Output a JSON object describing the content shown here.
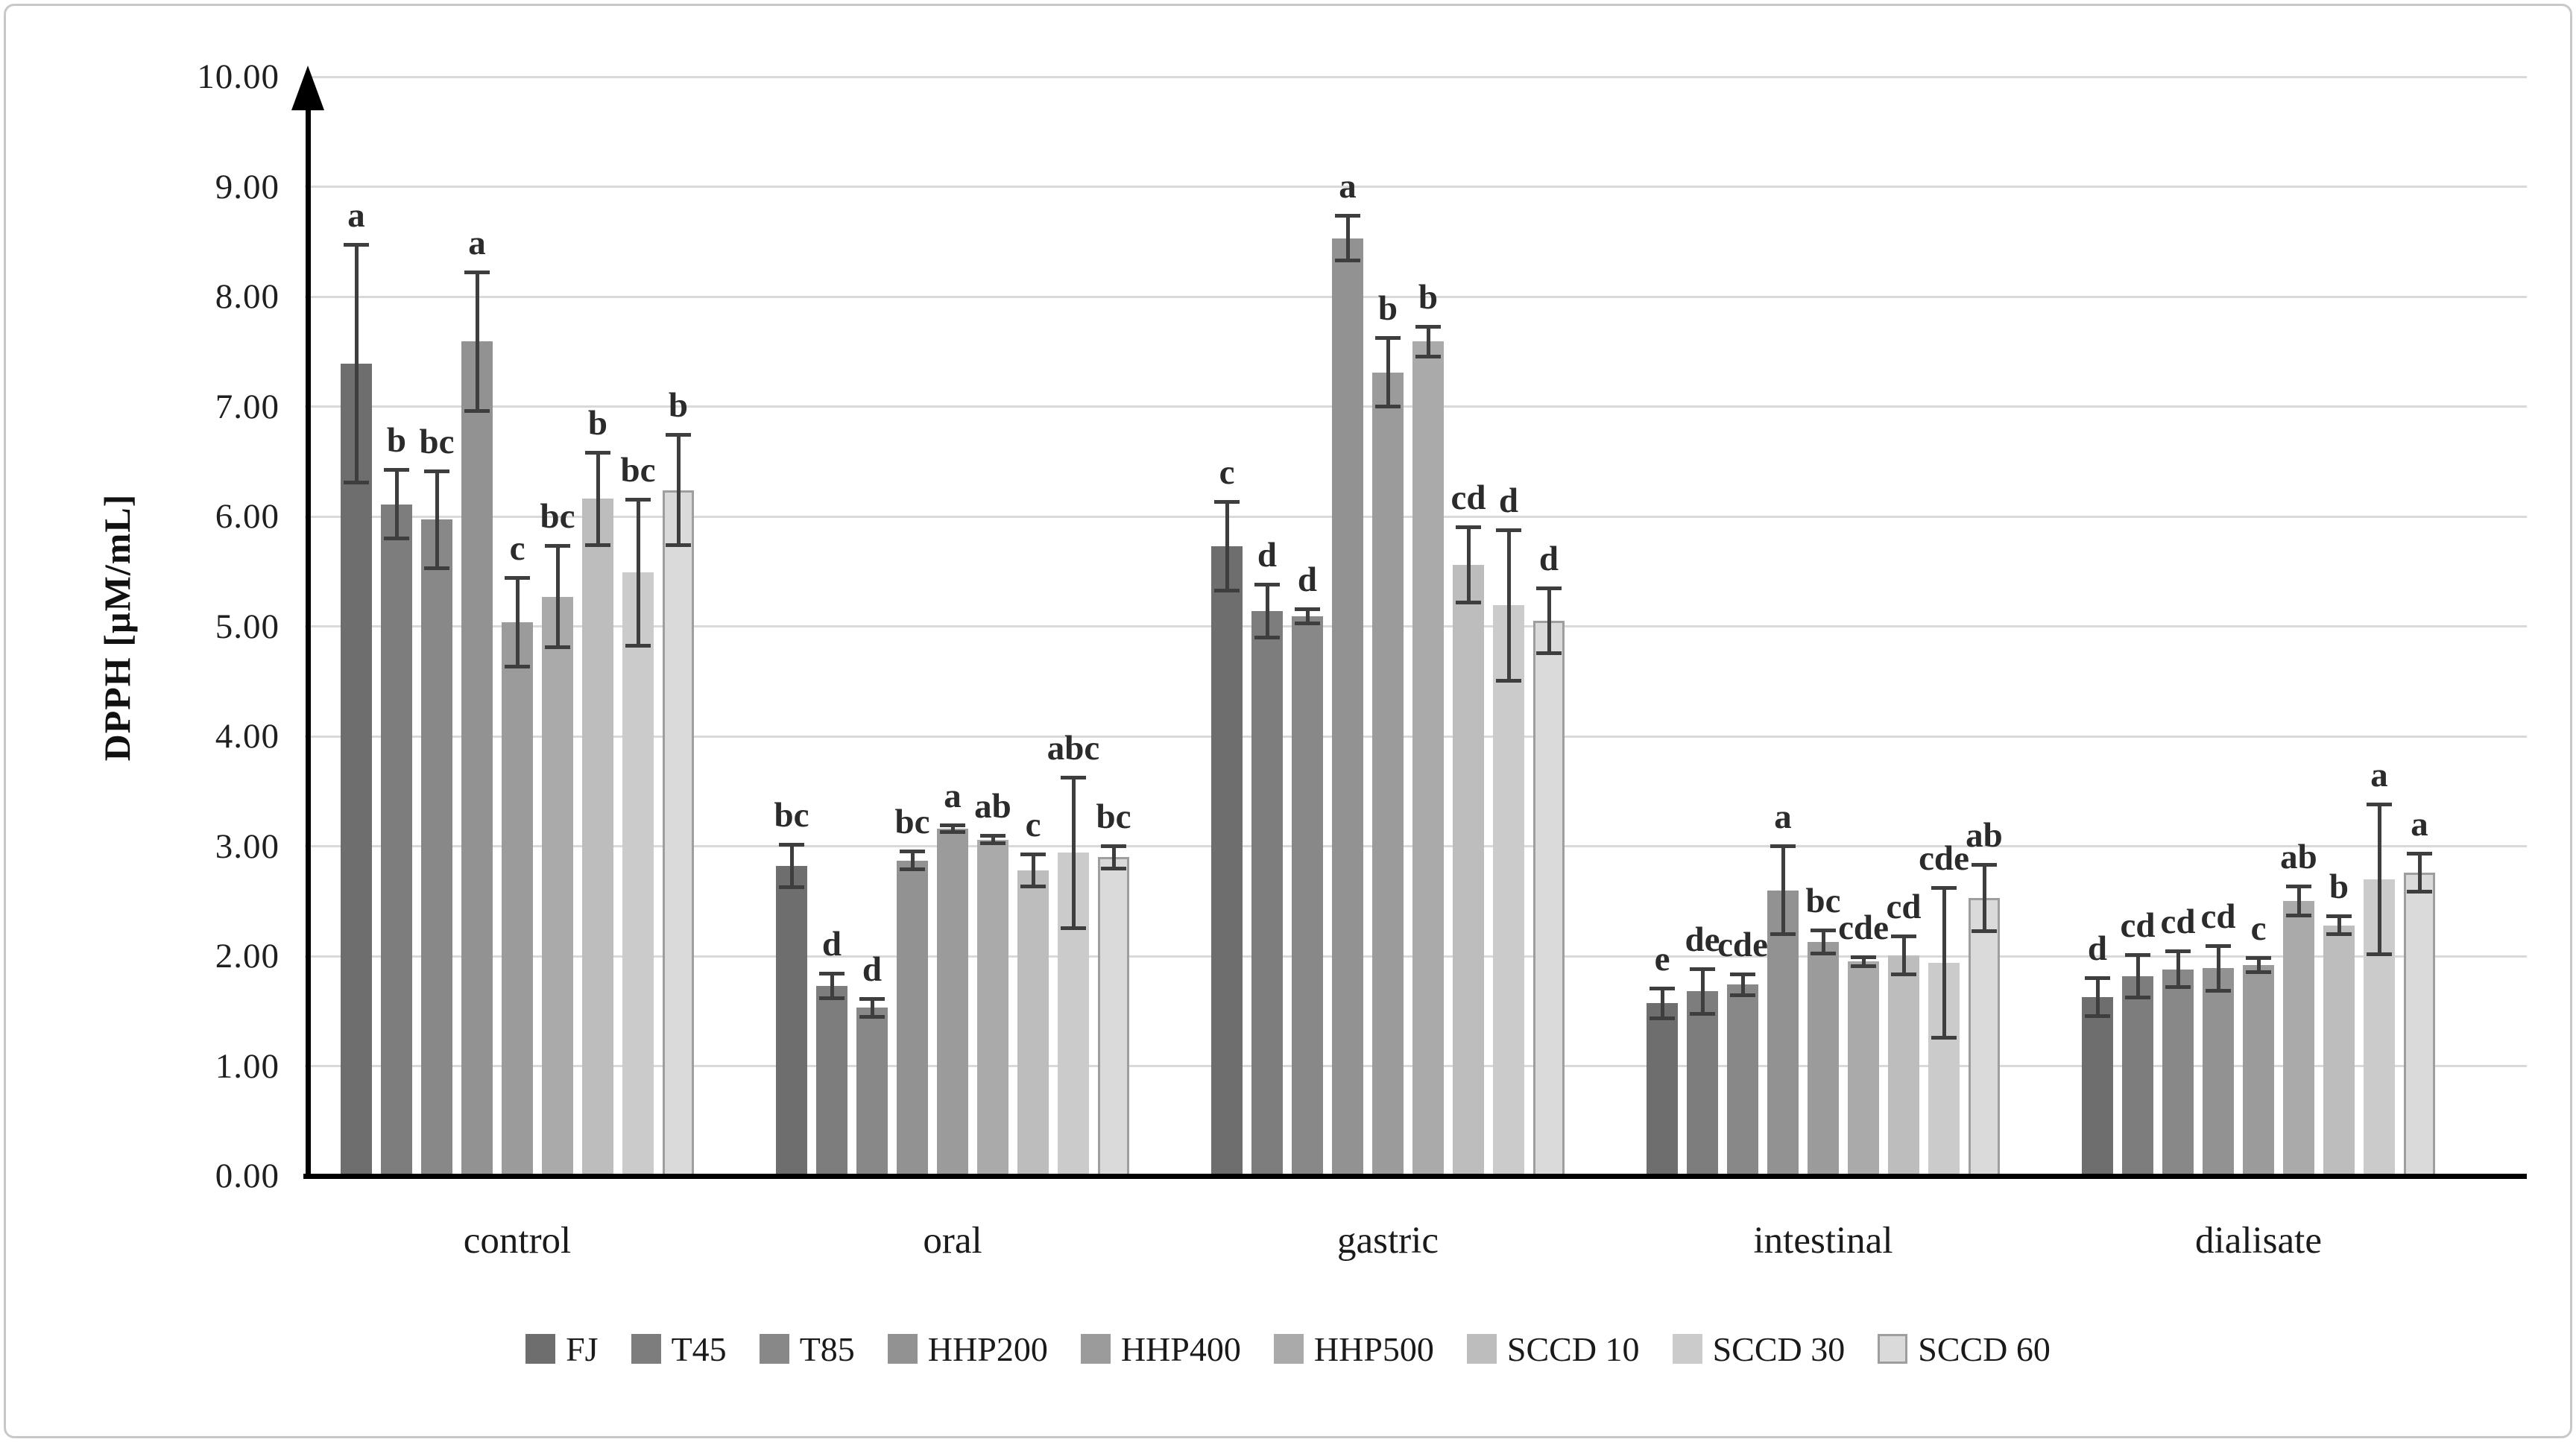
{
  "figure": {
    "background": "#ffffff",
    "border_color": "#c8c8c8"
  },
  "chart_data": {
    "type": "bar",
    "title": "",
    "ylabel": "DPPH [µM/mL]",
    "xlabel": "",
    "ylim": [
      0,
      10
    ],
    "ytick_labels": [
      "0.00",
      "1.00",
      "2.00",
      "3.00",
      "4.00",
      "5.00",
      "6.00",
      "7.00",
      "8.00",
      "9.00",
      "10.00"
    ],
    "grid": "horizontal",
    "gridline_color": "#d9d9d9",
    "error_bar_color": "#3e3e3e",
    "text_color": "#1f1f1f",
    "axis_arrow": "up",
    "legend_position": "bottom",
    "categories": [
      "control",
      "oral",
      "gastric",
      "intestinal",
      "dialisate"
    ],
    "series": [
      {
        "name": "FJ",
        "color": "#6e6e6e",
        "values": [
          7.39,
          2.82,
          5.73,
          1.57,
          1.63
        ],
        "errors": [
          1.1,
          0.21,
          0.42,
          0.15,
          0.19
        ],
        "letters": [
          "a",
          "bc",
          "c",
          "e",
          "d"
        ]
      },
      {
        "name": "T45",
        "color": "#7d7d7d",
        "values": [
          6.11,
          1.73,
          5.14,
          1.68,
          1.82
        ],
        "errors": [
          0.33,
          0.13,
          0.26,
          0.22,
          0.21
        ],
        "letters": [
          "b",
          "d",
          "d",
          "de",
          "cd"
        ]
      },
      {
        "name": "T85",
        "color": "#888888",
        "values": [
          5.97,
          1.53,
          5.09,
          1.74,
          1.88
        ],
        "errors": [
          0.46,
          0.1,
          0.08,
          0.11,
          0.18
        ],
        "letters": [
          "bc",
          "d",
          "d",
          "cde",
          "cd"
        ]
      },
      {
        "name": "HHP200",
        "color": "#929292",
        "values": [
          7.59,
          2.87,
          8.53,
          2.6,
          1.89
        ],
        "errors": [
          0.65,
          0.1,
          0.22,
          0.42,
          0.22
        ],
        "letters": [
          "a",
          "bc",
          "a",
          "a",
          "cd"
        ]
      },
      {
        "name": "HHP400",
        "color": "#9b9b9b",
        "values": [
          5.04,
          3.16,
          7.31,
          2.13,
          1.92
        ],
        "errors": [
          0.42,
          0.05,
          0.33,
          0.12,
          0.08
        ],
        "letters": [
          "c",
          "a",
          "b",
          "bc",
          "c"
        ]
      },
      {
        "name": "HHP500",
        "color": "#aaaaaa",
        "values": [
          5.27,
          3.06,
          7.59,
          1.95,
          2.5
        ],
        "errors": [
          0.48,
          0.05,
          0.15,
          0.06,
          0.15
        ],
        "letters": [
          "bc",
          "ab",
          "b",
          "cde",
          "ab"
        ]
      },
      {
        "name": "SCCD 10",
        "color": "#bdbdbd",
        "values": [
          6.16,
          2.78,
          5.56,
          2.01,
          2.28
        ],
        "errors": [
          0.44,
          0.16,
          0.36,
          0.19,
          0.1
        ],
        "letters": [
          "b",
          "c",
          "cd",
          "cd",
          "b"
        ]
      },
      {
        "name": "SCCD 30",
        "color": "#cbcbcb",
        "values": [
          5.49,
          2.94,
          5.19,
          1.94,
          2.7
        ],
        "errors": [
          0.68,
          0.7,
          0.7,
          0.7,
          0.7
        ],
        "letters": [
          "bc",
          "abc",
          "d",
          "cde",
          "a"
        ]
      },
      {
        "name": "SCCD 60",
        "color": "#dadada",
        "border_color": "#9e9e9e",
        "values": [
          6.24,
          2.9,
          5.05,
          2.53,
          2.76
        ],
        "errors": [
          0.52,
          0.12,
          0.31,
          0.32,
          0.19
        ],
        "letters": [
          "b",
          "bc",
          "d",
          "ab",
          "a"
        ]
      }
    ]
  }
}
